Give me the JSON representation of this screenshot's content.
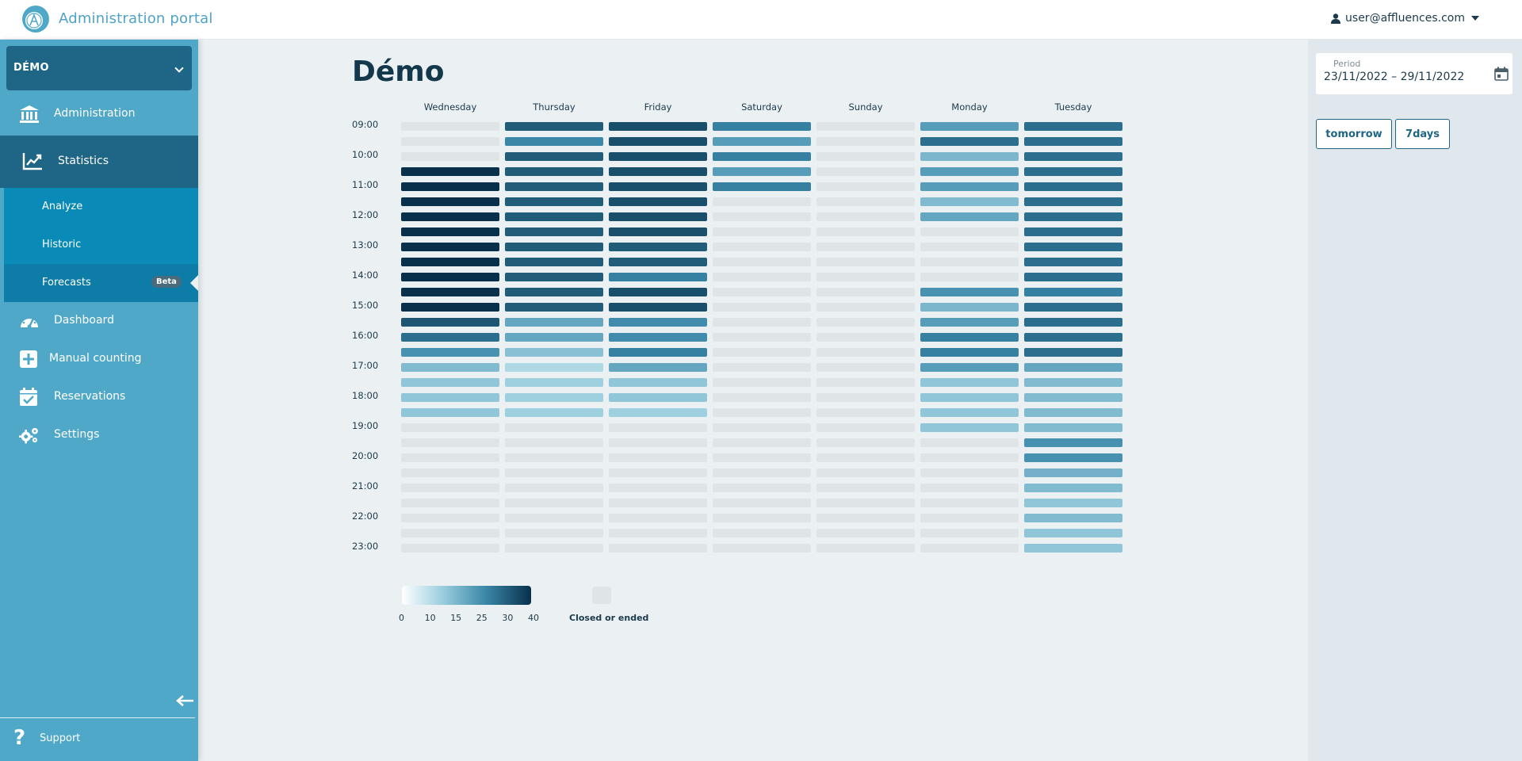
{
  "app": {
    "title": "Administration portal",
    "user": "user@affluences.com"
  },
  "sidebar": {
    "site": "DÉMO",
    "items": [
      {
        "key": "administration",
        "label": "Administration",
        "icon": "bank-icon"
      },
      {
        "key": "statistics",
        "label": "Statistics",
        "icon": "chart-line-icon"
      },
      {
        "key": "dashboard",
        "label": "Dashboard",
        "icon": "gauge-icon"
      },
      {
        "key": "manual-counting",
        "label": "Manual counting",
        "icon": "plus-square-icon"
      },
      {
        "key": "reservations",
        "label": "Reservations",
        "icon": "calendar-check-icon"
      },
      {
        "key": "settings",
        "label": "Settings",
        "icon": "gears-icon"
      }
    ],
    "statistics_sub": [
      {
        "label": "Analyze"
      },
      {
        "label": "Historic"
      },
      {
        "label": "Forecasts",
        "badge": "Beta"
      }
    ],
    "support": "Support"
  },
  "main": {
    "title": "Démo"
  },
  "right_panel": {
    "period_label": "Period",
    "period_value": "23/11/2022 – 29/11/2022",
    "buttons": [
      "tomorrow",
      "7days"
    ]
  },
  "heatmap": {
    "days": [
      "Wednesday",
      "Thursday",
      "Friday",
      "Saturday",
      "Sunday",
      "Monday",
      "Tuesday"
    ],
    "time_labels": [
      "09:00",
      "10:00",
      "11:00",
      "12:00",
      "13:00",
      "14:00",
      "15:00",
      "16:00",
      "17:00",
      "18:00",
      "19:00",
      "20:00",
      "21:00",
      "22:00",
      "23:00"
    ],
    "scale_max": 40,
    "cells": [
      [
        null,
        null,
        null,
        40,
        40,
        40,
        40,
        40,
        40,
        40,
        40,
        40,
        40,
        34,
        30,
        24,
        16,
        14,
        14,
        14,
        null,
        null,
        null,
        null,
        null,
        null,
        null,
        null,
        null
      ],
      [
        33,
        26,
        33,
        33,
        33,
        33,
        33,
        33,
        33,
        33,
        33,
        33,
        33,
        20,
        20,
        15,
        10,
        12,
        12,
        12,
        null,
        null,
        null,
        null,
        null,
        null,
        null,
        null,
        null
      ],
      [
        35,
        35,
        35,
        35,
        35,
        35,
        35,
        35,
        33,
        33,
        27,
        35,
        35,
        25,
        25,
        27,
        20,
        14,
        14,
        12,
        null,
        null,
        null,
        null,
        null,
        null,
        null,
        null,
        null
      ],
      [
        27,
        22,
        27,
        22,
        27,
        null,
        null,
        null,
        null,
        null,
        null,
        null,
        null,
        null,
        null,
        null,
        null,
        null,
        null,
        null,
        null,
        null,
        null,
        null,
        null,
        null,
        null,
        null,
        null
      ],
      [
        null,
        null,
        null,
        null,
        null,
        null,
        null,
        null,
        null,
        null,
        null,
        null,
        null,
        null,
        null,
        null,
        null,
        null,
        null,
        null,
        null,
        null,
        null,
        null,
        null,
        null,
        null,
        null,
        null
      ],
      [
        22,
        30,
        17,
        22,
        22,
        16,
        20,
        null,
        null,
        null,
        null,
        24,
        17,
        22,
        27,
        27,
        22,
        14,
        14,
        14,
        14,
        null,
        null,
        null,
        null,
        null,
        null,
        null,
        null
      ],
      [
        30,
        30,
        30,
        30,
        30,
        30,
        30,
        30,
        30,
        30,
        30,
        27,
        30,
        30,
        30,
        30,
        20,
        16,
        16,
        16,
        16,
        24,
        24,
        18,
        16,
        14,
        16,
        14,
        14
      ]
    ]
  },
  "legend": {
    "ticks": [
      "0",
      "10",
      "15",
      "25",
      "30",
      "40"
    ],
    "closed_label": "Closed or ended"
  }
}
